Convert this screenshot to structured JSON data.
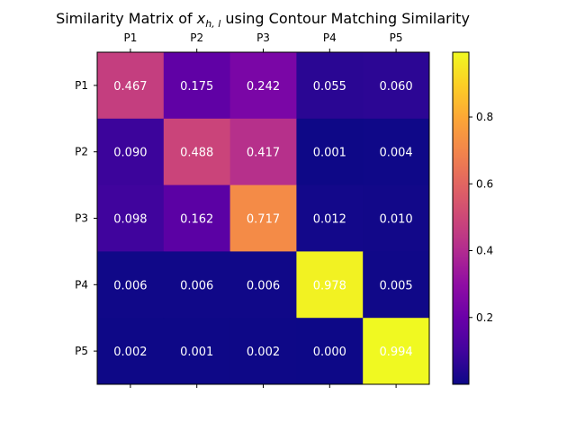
{
  "chart_data": {
    "type": "heatmap",
    "title_prefix": "Similarity Matrix of ",
    "title_var": "x",
    "title_sub": "h, l",
    "title_suffix": " using Contour Matching Similarity",
    "row_labels": [
      "P1",
      "P2",
      "P3",
      "P4",
      "P5"
    ],
    "col_labels": [
      "P1",
      "P2",
      "P3",
      "P4",
      "P5"
    ],
    "values": [
      [
        0.467,
        0.175,
        0.242,
        0.055,
        0.06
      ],
      [
        0.09,
        0.488,
        0.417,
        0.001,
        0.004
      ],
      [
        0.098,
        0.162,
        0.717,
        0.012,
        0.01
      ],
      [
        0.006,
        0.006,
        0.006,
        0.978,
        0.005
      ],
      [
        0.002,
        0.001,
        0.002,
        0.0,
        0.994
      ]
    ],
    "value_format_decimals": 3,
    "colormap": "plasma",
    "color_range": [
      0.0,
      0.994
    ],
    "colorbar_ticks": [
      "0.2",
      "0.4",
      "0.6",
      "0.8"
    ],
    "label_color": "#ffffff"
  }
}
